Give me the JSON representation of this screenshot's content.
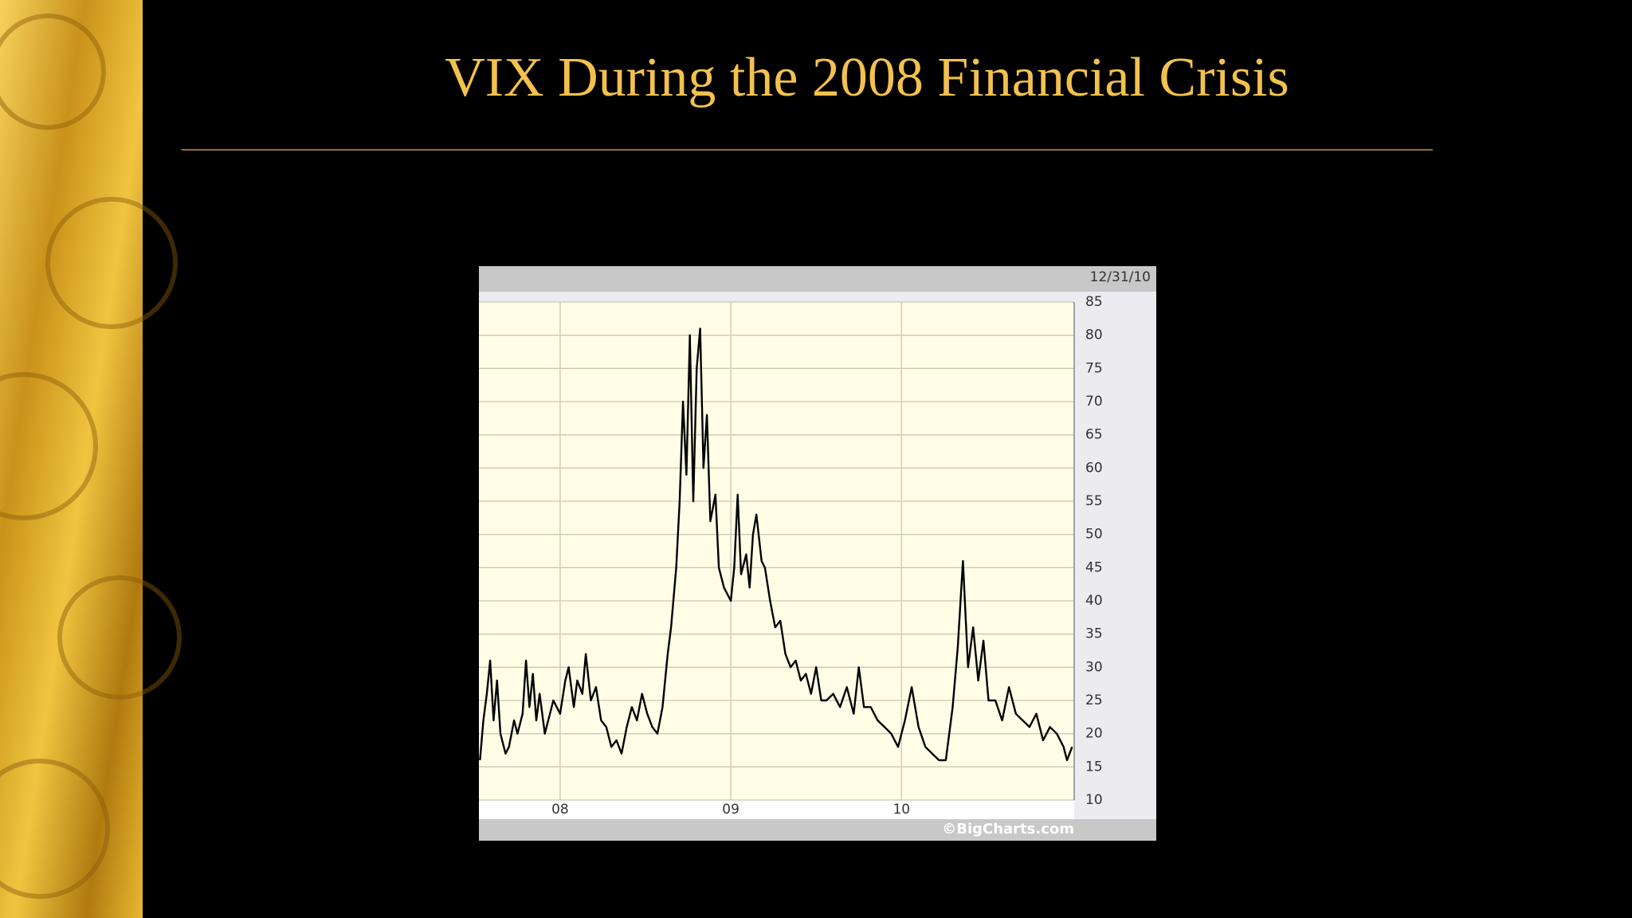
{
  "chart_data": {
    "type": "line",
    "title": "VIX During the 2008 Financial Crisis",
    "date_label": "12/31/10",
    "source": "©BigCharts.com",
    "x": [
      2007.53,
      2007.55,
      2007.57,
      2007.59,
      2007.61,
      2007.63,
      2007.65,
      2007.68,
      2007.7,
      2007.73,
      2007.75,
      2007.78,
      2007.8,
      2007.82,
      2007.84,
      2007.86,
      2007.88,
      2007.91,
      2007.93,
      2007.96,
      2008.0,
      2008.03,
      2008.05,
      2008.08,
      2008.1,
      2008.13,
      2008.15,
      2008.18,
      2008.21,
      2008.24,
      2008.27,
      2008.3,
      2008.33,
      2008.36,
      2008.39,
      2008.42,
      2008.45,
      2008.48,
      2008.51,
      2008.54,
      2008.57,
      2008.6,
      2008.63,
      2008.65,
      2008.68,
      2008.7,
      2008.72,
      2008.74,
      2008.76,
      2008.78,
      2008.8,
      2008.82,
      2008.84,
      2008.86,
      2008.88,
      2008.91,
      2008.93,
      2008.96,
      2009.0,
      2009.02,
      2009.04,
      2009.06,
      2009.09,
      2009.11,
      2009.13,
      2009.15,
      2009.18,
      2009.2,
      2009.23,
      2009.26,
      2009.29,
      2009.32,
      2009.35,
      2009.38,
      2009.41,
      2009.44,
      2009.47,
      2009.5,
      2009.53,
      2009.56,
      2009.6,
      2009.64,
      2009.68,
      2009.72,
      2009.75,
      2009.78,
      2009.82,
      2009.86,
      2009.9,
      2009.94,
      2009.98,
      2010.02,
      2010.06,
      2010.1,
      2010.14,
      2010.18,
      2010.22,
      2010.26,
      2010.3,
      2010.33,
      2010.36,
      2010.39,
      2010.42,
      2010.45,
      2010.48,
      2010.51,
      2010.55,
      2010.59,
      2010.63,
      2010.67,
      2010.71,
      2010.75,
      2010.79,
      2010.83,
      2010.87,
      2010.91,
      2010.95,
      2010.97,
      2011.0
    ],
    "values": [
      16,
      22,
      26,
      31,
      22,
      28,
      20,
      17,
      18,
      22,
      20,
      23,
      31,
      24,
      29,
      22,
      26,
      20,
      22,
      25,
      23,
      28,
      30,
      24,
      28,
      26,
      32,
      25,
      27,
      22,
      21,
      18,
      19,
      17,
      21,
      24,
      22,
      26,
      23,
      21,
      20,
      24,
      32,
      36,
      45,
      55,
      70,
      59,
      80,
      55,
      75,
      81,
      60,
      68,
      52,
      56,
      45,
      42,
      40,
      45,
      56,
      44,
      47,
      42,
      50,
      53,
      46,
      45,
      40,
      36,
      37,
      32,
      30,
      31,
      28,
      29,
      26,
      30,
      25,
      25,
      26,
      24,
      27,
      23,
      30,
      24,
      24,
      22,
      21,
      20,
      18,
      22,
      27,
      21,
      18,
      17,
      16,
      16,
      24,
      33,
      46,
      30,
      36,
      28,
      34,
      25,
      25,
      22,
      27,
      23,
      22,
      21,
      23,
      19,
      21,
      20,
      18,
      16,
      18
    ],
    "color": "#000000",
    "xlim": [
      2007.524,
      2011.012
    ],
    "xticks": [
      {
        "value": 2008,
        "label": "08"
      },
      {
        "value": 2009,
        "label": "09"
      },
      {
        "value": 2010,
        "label": "10"
      }
    ],
    "ylim": [
      10,
      85
    ],
    "yticks": [
      10,
      15,
      20,
      25,
      30,
      35,
      40,
      45,
      50,
      55,
      60,
      65,
      70,
      75,
      80,
      85
    ],
    "grid": true
  }
}
